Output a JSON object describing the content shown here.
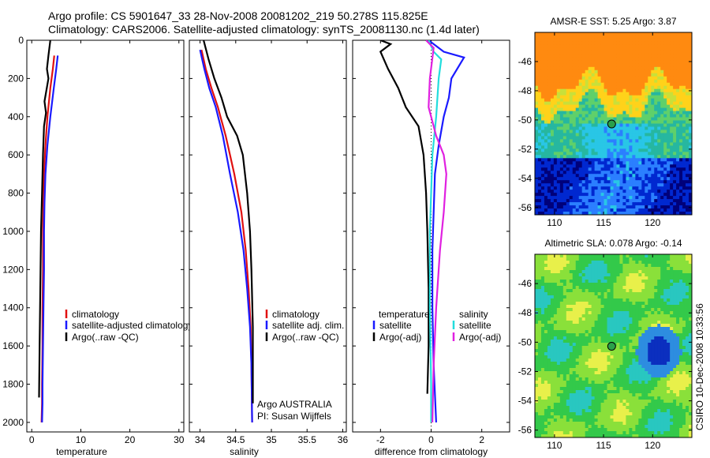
{
  "header": {
    "line1": "Argo profile: CS 5901647_33 28-Nov-2008 20081202_219 50.278S 115.825E",
    "line2": "Climatology: CARS2006. Satellite-adjusted climatology: synTS_20081130.nc (1.4d later)"
  },
  "side_label": "CSIRO 10-Dec-2008 10:33:56",
  "colors": {
    "climatology": "#e01010",
    "satellite": "#1a1aff",
    "argo": "#000000",
    "satellite_salt": "#22dddd",
    "argo_salt": "#e020e0"
  },
  "chart_data": [
    {
      "type": "line",
      "panel": "temperature",
      "xlabel": "temperature",
      "ylabel": "",
      "xlim": [
        -1,
        31
      ],
      "ylim": [
        2050,
        0
      ],
      "xticks": [
        "0",
        "10",
        "20",
        "30"
      ],
      "yticks": [
        "0",
        "200",
        "400",
        "600",
        "800",
        "1000",
        "1200",
        "1400",
        "1600",
        "1800",
        "2000"
      ],
      "series": [
        {
          "name": "climatology",
          "color": "#e01010",
          "x": [
            4.6,
            4.3,
            3.8,
            3.2,
            2.8,
            2.5,
            2.4,
            2.3,
            2.3,
            2.2,
            2.2,
            2.1,
            2.1,
            2.0
          ],
          "y": [
            80,
            150,
            250,
            400,
            550,
            700,
            850,
            1000,
            1200,
            1400,
            1600,
            1800,
            1900,
            2000
          ]
        },
        {
          "name": "satellite-adjusted climatology",
          "color": "#1a1aff",
          "x": [
            5.3,
            5.0,
            4.5,
            3.8,
            3.2,
            2.8,
            2.6,
            2.5,
            2.5,
            2.4,
            2.3,
            2.2,
            2.2,
            2.1
          ],
          "y": [
            80,
            150,
            250,
            400,
            550,
            700,
            850,
            1000,
            1200,
            1400,
            1600,
            1800,
            1900,
            2000
          ]
        },
        {
          "name": "Argo(..raw -QC)",
          "color": "#000000",
          "x": [
            3.8,
            3.4,
            3.1,
            3.4,
            3.0,
            2.6,
            2.9,
            2.5,
            2.3,
            2.1,
            1.9,
            1.8,
            1.7,
            1.6,
            1.5
          ],
          "y": [
            0,
            80,
            150,
            200,
            260,
            320,
            380,
            450,
            600,
            800,
            1000,
            1200,
            1400,
            1600,
            1870
          ]
        }
      ]
    },
    {
      "type": "line",
      "panel": "salinity",
      "xlabel": "salinity",
      "xlim": [
        33.85,
        36.05
      ],
      "ylim": [
        2050,
        0
      ],
      "xticks": [
        "34",
        "34.5",
        "35",
        "35.5",
        "36"
      ],
      "series": [
        {
          "name": "climatology",
          "color": "#e01010",
          "x": [
            34.02,
            34.08,
            34.16,
            34.25,
            34.36,
            34.48,
            34.58,
            34.64,
            34.68,
            34.71,
            34.72,
            34.73
          ],
          "y": [
            50,
            150,
            250,
            350,
            500,
            700,
            900,
            1100,
            1300,
            1500,
            1700,
            2000
          ]
        },
        {
          "name": "satellite adj. clim.",
          "color": "#1a1aff",
          "x": [
            34.0,
            34.06,
            34.13,
            34.22,
            34.32,
            34.42,
            34.53,
            34.61,
            34.66,
            34.7,
            34.72,
            34.73
          ],
          "y": [
            50,
            150,
            250,
            350,
            500,
            700,
            900,
            1100,
            1300,
            1500,
            1700,
            2000
          ]
        },
        {
          "name": "Argo(..raw -QC)",
          "color": "#000000",
          "x": [
            34.05,
            34.12,
            34.2,
            34.3,
            34.38,
            34.52,
            34.6,
            34.66,
            34.7,
            34.72,
            34.74,
            34.74
          ],
          "y": [
            0,
            100,
            200,
            300,
            400,
            500,
            600,
            800,
            1000,
            1200,
            1500,
            1900
          ]
        }
      ]
    },
    {
      "type": "line",
      "panel": "difference",
      "xlabel": "difference from climatology",
      "xlim": [
        -3.1,
        3.1
      ],
      "ylim": [
        2050,
        0
      ],
      "xticks": [
        "-2",
        "0",
        "2"
      ],
      "legend_left_title": "temperature",
      "legend_right_title": "salinity",
      "series": [
        {
          "name": "satellite",
          "color": "#1a1aff",
          "x": [
            -0.1,
            0.5,
            1.3,
            0.8,
            0.7,
            0.5,
            0.3,
            0.15,
            0.1,
            0.05,
            0.05,
            0.1,
            0.2
          ],
          "y": [
            0,
            60,
            90,
            200,
            300,
            400,
            550,
            700,
            900,
            1100,
            1400,
            1700,
            2000
          ]
        },
        {
          "name": "Argo(-adj)",
          "color": "#000000",
          "x": [
            -2.0,
            -1.6,
            -2.0,
            -1.7,
            -1.3,
            -1.0,
            -0.5,
            -0.3,
            -0.2,
            -0.15,
            -0.1,
            -0.1,
            -0.15
          ],
          "y": [
            0,
            20,
            60,
            150,
            250,
            350,
            450,
            600,
            800,
            1000,
            1300,
            1600,
            1850
          ]
        },
        {
          "name": "satellite",
          "color": "#22dddd",
          "x": [
            -0.1,
            0.1,
            0.4,
            0.3,
            0.2,
            0.05,
            0.0,
            -0.05,
            -0.05,
            0.0,
            0.0
          ],
          "y": [
            0,
            60,
            100,
            200,
            400,
            600,
            800,
            1000,
            1400,
            1800,
            2000
          ]
        },
        {
          "name": "Argo(-adj)",
          "color": "#e020e0",
          "x": [
            -0.2,
            0.1,
            -0.05,
            -0.1,
            0.2,
            0.5,
            0.6,
            0.5,
            0.35,
            0.2,
            0.1,
            0.05
          ],
          "y": [
            0,
            40,
            200,
            350,
            500,
            600,
            700,
            900,
            1100,
            1400,
            1700,
            2000
          ]
        }
      ]
    },
    {
      "type": "heatmap",
      "panel": "sst_map",
      "title": "AMSR-E SST: 5.25 Argo: 3.87",
      "xlim": [
        108,
        124
      ],
      "ylim": [
        -56.5,
        -44
      ],
      "xticks": [
        "110",
        "115",
        "120"
      ],
      "yticks": [
        "-46",
        "-48",
        "-50",
        "-52",
        "-54",
        "-56"
      ],
      "marker": {
        "lon": 115.825,
        "lat": -50.278
      },
      "sst": 5.25,
      "argo": 3.87
    },
    {
      "type": "heatmap",
      "panel": "sla_map",
      "title": "Altimetric SLA: 0.078 Argo: -0.14",
      "xlim": [
        108,
        124
      ],
      "ylim": [
        -56.5,
        -44
      ],
      "xticks": [
        "110",
        "115",
        "120"
      ],
      "yticks": [
        "-46",
        "-48",
        "-50",
        "-52",
        "-54",
        "-56"
      ],
      "marker": {
        "lon": 115.825,
        "lat": -50.278
      },
      "sla": 0.078,
      "argo": -0.14
    }
  ],
  "legends": {
    "temperature": [
      "climatology",
      "satellite-adjusted climatology",
      "Argo(..raw -QC)"
    ],
    "salinity": [
      "climatology",
      "satellite adj. clim.",
      "Argo(..raw -QC)"
    ],
    "credit1": "Argo AUSTRALIA",
    "credit2": "PI: Susan Wijffels",
    "diff_left": [
      "temperature",
      "satellite",
      "Argo(-adj)"
    ],
    "diff_right": [
      "salinity",
      "satellite",
      "Argo(-adj)"
    ]
  }
}
